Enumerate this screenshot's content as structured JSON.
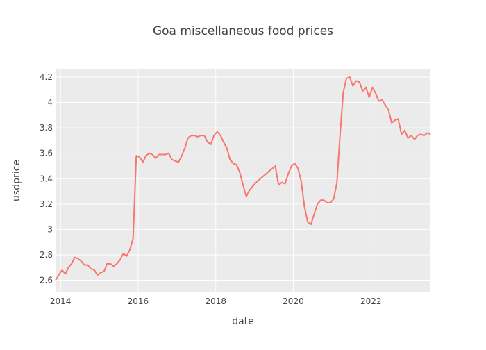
{
  "chart_data": {
    "type": "line",
    "title": "Goa miscellaneous food prices",
    "xlabel": "date",
    "ylabel": "usdprice",
    "xlim": [
      "2013-11-15",
      "2023-07-15"
    ],
    "ylim": [
      2.51,
      4.26
    ],
    "x_ticks": [
      {
        "date": "2014-01-01",
        "label": "2014"
      },
      {
        "date": "2016-01-01",
        "label": "2016"
      },
      {
        "date": "2018-01-01",
        "label": "2018"
      },
      {
        "date": "2020-01-01",
        "label": "2020"
      },
      {
        "date": "2022-01-01",
        "label": "2022"
      }
    ],
    "y_ticks": [
      {
        "value": 2.6,
        "label": "2.6"
      },
      {
        "value": 2.8,
        "label": "2.8"
      },
      {
        "value": 3.0,
        "label": "3"
      },
      {
        "value": 3.2,
        "label": "3.2"
      },
      {
        "value": 3.4,
        "label": "3.4"
      },
      {
        "value": 3.6,
        "label": "3.6"
      },
      {
        "value": 3.8,
        "label": "3.8"
      },
      {
        "value": 4.0,
        "label": "4"
      },
      {
        "value": 4.2,
        "label": "4.2"
      }
    ],
    "grid": true,
    "background": "#ebebeb",
    "line_color": "#f8766d",
    "series": [
      {
        "x": [
          "2013-11-15",
          "2014-01-15",
          "2014-02-15",
          "2014-03-15",
          "2014-04-15",
          "2014-05-15",
          "2014-06-15",
          "2014-07-15",
          "2014-08-15",
          "2014-09-15",
          "2014-10-15",
          "2014-11-15",
          "2014-12-15",
          "2015-01-15",
          "2015-02-15",
          "2015-03-15",
          "2015-04-15",
          "2015-05-15",
          "2015-06-15",
          "2015-07-15",
          "2015-08-15",
          "2015-09-15",
          "2015-10-15",
          "2015-11-15",
          "2015-12-15",
          "2016-01-15",
          "2016-02-15",
          "2016-03-15",
          "2016-04-15",
          "2016-05-15",
          "2016-06-15",
          "2016-07-15",
          "2016-08-15",
          "2016-09-15",
          "2016-10-15",
          "2016-11-15",
          "2016-12-15",
          "2017-01-15",
          "2017-02-15",
          "2017-03-15",
          "2017-04-15",
          "2017-05-15",
          "2017-06-15",
          "2017-07-15",
          "2017-08-15",
          "2017-09-15",
          "2017-10-15",
          "2017-11-15",
          "2017-12-15",
          "2018-01-15",
          "2018-02-15",
          "2018-03-15",
          "2018-04-15",
          "2018-05-15",
          "2018-06-15",
          "2018-07-15",
          "2018-08-15",
          "2018-09-15",
          "2018-10-15",
          "2018-11-15",
          "2018-12-15",
          "2019-01-15",
          "2019-07-15",
          "2019-08-15",
          "2019-09-15",
          "2019-10-15",
          "2019-11-15",
          "2019-12-15",
          "2020-01-15",
          "2020-02-15",
          "2020-03-15",
          "2020-04-15",
          "2020-05-15",
          "2020-06-15",
          "2020-07-15",
          "2020-08-15",
          "2020-09-15",
          "2020-10-15",
          "2020-11-15",
          "2020-12-15",
          "2021-01-15",
          "2021-02-15",
          "2021-03-15",
          "2021-04-15",
          "2021-05-15",
          "2021-06-15",
          "2021-07-15",
          "2021-08-15",
          "2021-09-15",
          "2021-10-15",
          "2021-11-15",
          "2021-12-15",
          "2022-01-15",
          "2022-02-15",
          "2022-03-15",
          "2022-04-15",
          "2022-05-15",
          "2022-06-15",
          "2022-07-15",
          "2022-08-15",
          "2022-09-15",
          "2022-10-15",
          "2022-11-15",
          "2022-12-15",
          "2023-01-15",
          "2023-02-15",
          "2023-03-15",
          "2023-04-15",
          "2023-05-15",
          "2023-06-15",
          "2023-07-15"
        ],
        "y": [
          2.6,
          2.68,
          2.65,
          2.7,
          2.73,
          2.78,
          2.77,
          2.75,
          2.72,
          2.72,
          2.69,
          2.68,
          2.64,
          2.66,
          2.67,
          2.73,
          2.73,
          2.71,
          2.73,
          2.76,
          2.81,
          2.79,
          2.84,
          2.93,
          3.58,
          3.57,
          3.53,
          3.58,
          3.6,
          3.59,
          3.56,
          3.59,
          3.59,
          3.59,
          3.6,
          3.55,
          3.54,
          3.53,
          3.58,
          3.64,
          3.72,
          3.74,
          3.74,
          3.73,
          3.74,
          3.74,
          3.69,
          3.67,
          3.74,
          3.77,
          3.74,
          3.69,
          3.64,
          3.55,
          3.52,
          3.51,
          3.45,
          3.35,
          3.26,
          3.31,
          3.34,
          3.37,
          3.5,
          3.35,
          3.37,
          3.36,
          3.44,
          3.5,
          3.52,
          3.48,
          3.38,
          3.18,
          3.06,
          3.04,
          3.12,
          3.2,
          3.23,
          3.23,
          3.21,
          3.21,
          3.24,
          3.37,
          3.73,
          4.08,
          4.19,
          4.2,
          4.13,
          4.17,
          4.16,
          4.09,
          4.12,
          4.04,
          4.12,
          4.07,
          4.01,
          4.02,
          3.98,
          3.94,
          3.84,
          3.86,
          3.87,
          3.75,
          3.78,
          3.72,
          3.74,
          3.71,
          3.74,
          3.75,
          3.74,
          3.76,
          3.75
        ]
      }
    ]
  }
}
